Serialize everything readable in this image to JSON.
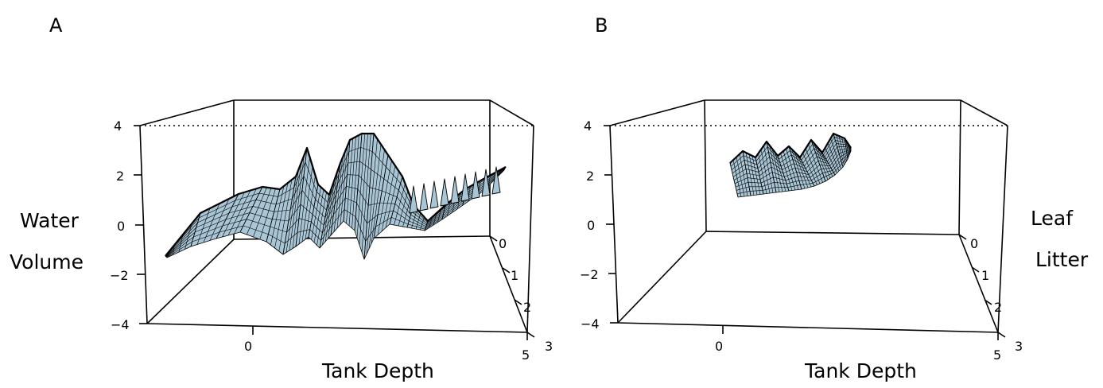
{
  "chart_data": [
    {
      "type": "surface",
      "panel": "A",
      "z_label": [
        "Water",
        "Volume"
      ],
      "x_label": "Tank Depth",
      "y_label": "",
      "zlim": [
        -4,
        4
      ],
      "z_ticks": [
        "4",
        "2",
        "0",
        "−2",
        "−4"
      ],
      "x_ticks": [
        "0",
        "5"
      ],
      "y_ticks": [
        "0",
        "1",
        "2",
        "3"
      ],
      "surface_color": "#a9c6d6",
      "grid_color": "#000000"
    },
    {
      "type": "surface",
      "panel": "B",
      "z_label": [
        "Leaf",
        "Litter"
      ],
      "x_label": "Tank Depth",
      "y_label": "",
      "zlim": [
        -4,
        4
      ],
      "z_ticks": [
        "4",
        "2",
        "0",
        "−2",
        "−4"
      ],
      "x_ticks": [
        "0",
        "5"
      ],
      "y_ticks": [
        "0",
        "1",
        "2",
        "3"
      ],
      "surface_color": "#a9c6d6",
      "grid_color": "#000000"
    }
  ]
}
